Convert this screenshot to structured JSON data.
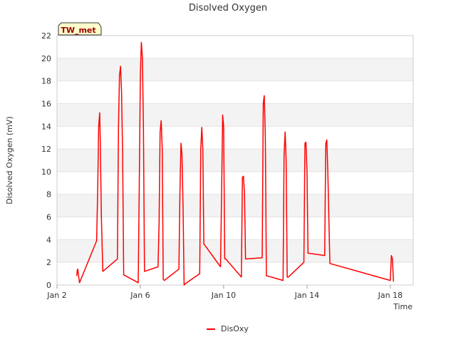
{
  "chart_data": {
    "type": "line",
    "title": "Disolved Oxygen",
    "xlabel": "Time",
    "ylabel": "Disolved Oxygen (mV)",
    "badge": "TW_met",
    "xlim": [
      2,
      19.1
    ],
    "ylim": [
      0,
      22
    ],
    "yticks": [
      0,
      2,
      4,
      6,
      8,
      10,
      12,
      14,
      16,
      18,
      20,
      22
    ],
    "xticks": [
      {
        "value": 2,
        "label": "Jan 2"
      },
      {
        "value": 6,
        "label": "Jan 6"
      },
      {
        "value": 10,
        "label": "Jan 10"
      },
      {
        "value": 14,
        "label": "Jan 14"
      },
      {
        "value": 18,
        "label": "Jan 18"
      }
    ],
    "series": [
      {
        "name": "DisOxy",
        "color": "#ff0000",
        "x": [
          2.95,
          2.97,
          3.0,
          3.03,
          3.08,
          3.9,
          3.95,
          4.0,
          4.05,
          4.08,
          4.13,
          4.2,
          4.9,
          4.95,
          5.0,
          5.05,
          5.1,
          5.15,
          5.2,
          5.9,
          5.95,
          6.0,
          6.05,
          6.1,
          6.15,
          6.2,
          6.85,
          6.9,
          6.95,
          7.0,
          7.05,
          7.1,
          7.15,
          7.85,
          7.9,
          7.95,
          8.0,
          8.05,
          8.1,
          8.15,
          8.85,
          8.9,
          8.95,
          9.0,
          9.05,
          9.1,
          9.85,
          9.9,
          9.95,
          10.0,
          10.05,
          10.1,
          10.85,
          10.9,
          10.95,
          11.0,
          11.05,
          11.1,
          11.85,
          11.9,
          11.95,
          12.0,
          12.05,
          12.1,
          12.85,
          12.9,
          12.95,
          13.0,
          13.05,
          13.1,
          13.85,
          13.9,
          13.95,
          14.0,
          14.05,
          14.1,
          14.85,
          14.9,
          14.95,
          15.0,
          15.05,
          15.1,
          18.0,
          18.05,
          18.1,
          18.15
        ],
        "y": [
          0.8,
          1.3,
          1.4,
          0.9,
          0.2,
          3.9,
          8.0,
          14.0,
          15.2,
          12.5,
          6.0,
          1.2,
          2.3,
          14.0,
          18.5,
          19.3,
          17.0,
          11.5,
          0.9,
          0.2,
          9.0,
          18.5,
          21.4,
          20.0,
          14.0,
          1.2,
          1.6,
          5.5,
          13.5,
          14.5,
          12.0,
          0.5,
          0.4,
          1.4,
          8.0,
          12.5,
          11.5,
          7.0,
          0.0,
          0.1,
          1.0,
          12.0,
          13.9,
          12.0,
          3.6,
          3.5,
          1.6,
          8.0,
          15.0,
          14.0,
          2.3,
          2.3,
          0.7,
          9.5,
          9.6,
          8.0,
          2.3,
          2.3,
          2.4,
          16.0,
          16.7,
          13.0,
          0.8,
          0.8,
          0.4,
          11.5,
          13.5,
          11.0,
          0.7,
          0.7,
          2.0,
          12.5,
          12.6,
          10.0,
          2.8,
          2.8,
          2.6,
          12.5,
          12.8,
          10.0,
          5.8,
          1.9,
          0.4,
          2.6,
          2.3,
          0.3
        ]
      }
    ],
    "legend": {
      "position": "bottom"
    },
    "grid": true
  }
}
